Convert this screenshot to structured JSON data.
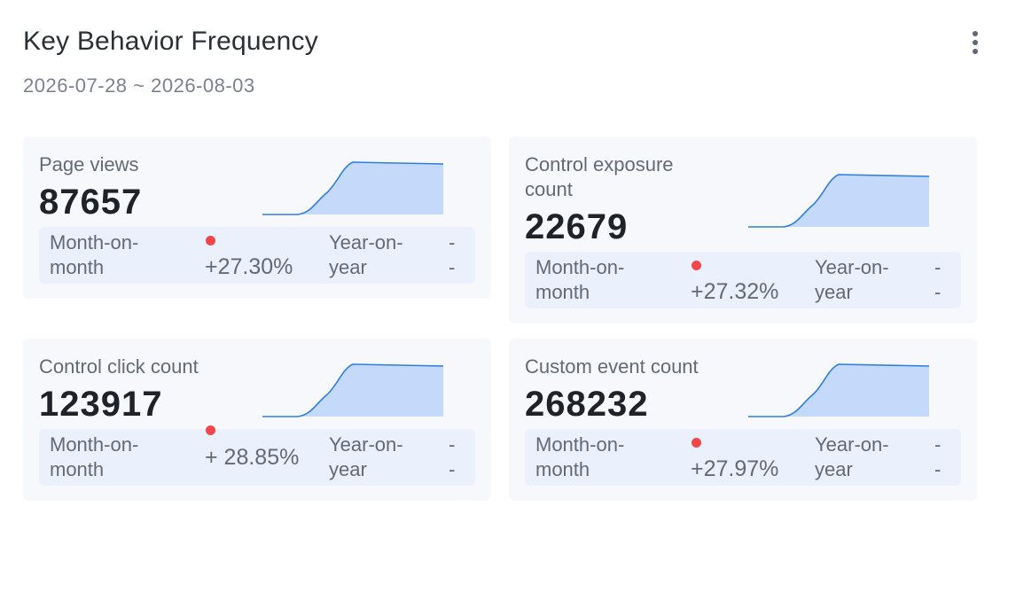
{
  "header": {
    "title": "Key Behavior Frequency",
    "date_range": "2026-07-28 ~ 2026-08-03"
  },
  "colors": {
    "card_bg": "#f7f8fc",
    "comparison_bg": "#eaf0fc",
    "spark_fill": "#c5dafa",
    "spark_line": "#2f7de1",
    "increase_dot": "#f0484a"
  },
  "cards": [
    {
      "label": "Page views",
      "value": "87657",
      "mom_label": "Month-on-month",
      "mom_value": "+27.30%",
      "yoy_label": "Year-on-year",
      "yoy_value": "-\n-"
    },
    {
      "label": "Control exposure count",
      "value": "22679",
      "mom_label": "Month-on-month",
      "mom_value": "+27.32%",
      "yoy_label": "Year-on-year",
      "yoy_value": "-\n-"
    },
    {
      "label": "Control click count",
      "value": "123917",
      "mom_label": "Month-on-month",
      "mom_value": "+ 28.85%",
      "yoy_label": "Year-on-year",
      "yoy_value": "-\n-"
    },
    {
      "label": "Custom event count",
      "value": "268232",
      "mom_label": "Month-on-month",
      "mom_value": "+27.97%",
      "yoy_label": "Year-on-year",
      "yoy_value": "-\n-"
    }
  ]
}
